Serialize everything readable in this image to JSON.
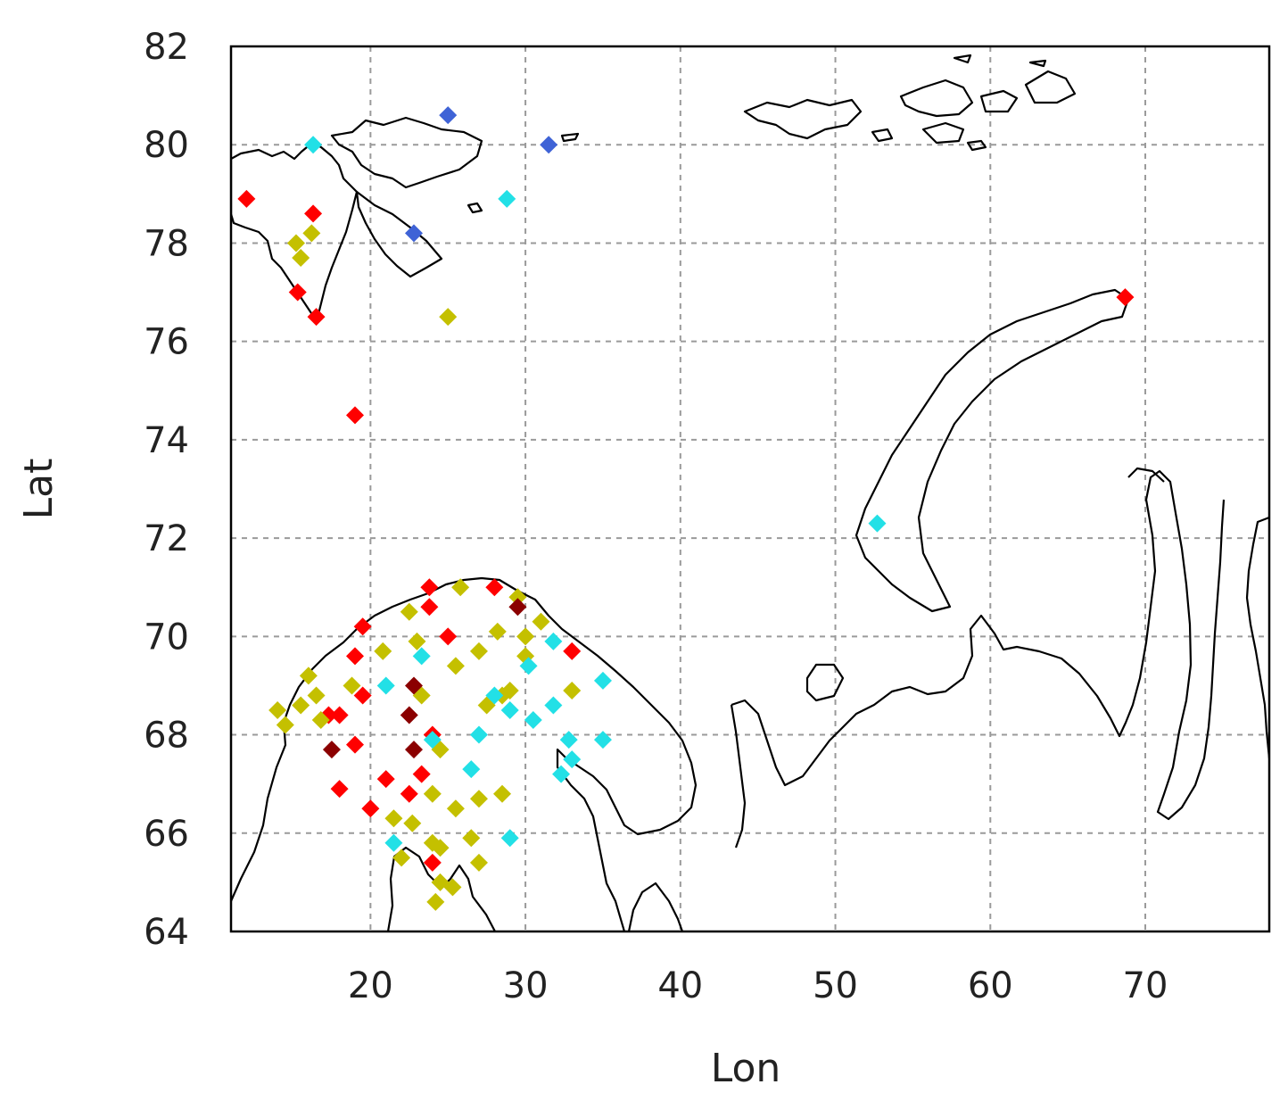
{
  "chart_data": {
    "type": "scatter",
    "xlabel": "Lon",
    "ylabel": "Lat",
    "xlim": [
      11,
      78
    ],
    "ylim": [
      64,
      82
    ],
    "xticks": [
      20,
      30,
      40,
      50,
      60,
      70
    ],
    "yticks": [
      64,
      66,
      68,
      70,
      72,
      74,
      76,
      78,
      80,
      82
    ],
    "grid": true,
    "marker": "diamond",
    "colors": {
      "red": "#ff0000",
      "yellow": "#c4c000",
      "cyan": "#22e0e6",
      "darkred": "#8b0000",
      "blue": "#3f63d6"
    },
    "series": [
      {
        "color_key": "red",
        "points": [
          [
            12.0,
            78.9
          ],
          [
            16.3,
            78.6
          ],
          [
            15.3,
            77.0
          ],
          [
            16.5,
            76.5
          ],
          [
            19.0,
            74.5
          ],
          [
            23.8,
            71.0
          ],
          [
            23.8,
            70.6
          ],
          [
            28.0,
            71.0
          ],
          [
            19.5,
            70.2
          ],
          [
            25.0,
            70.0
          ],
          [
            19.0,
            69.6
          ],
          [
            33.0,
            69.7
          ],
          [
            19.5,
            68.8
          ],
          [
            17.3,
            68.4
          ],
          [
            18.0,
            68.4
          ],
          [
            19.0,
            67.8
          ],
          [
            24.0,
            68.0
          ],
          [
            18.0,
            66.9
          ],
          [
            21.0,
            67.1
          ],
          [
            23.3,
            67.2
          ],
          [
            22.5,
            66.8
          ],
          [
            20.0,
            66.5
          ],
          [
            24.0,
            65.4
          ],
          [
            68.7,
            76.9
          ]
        ]
      },
      {
        "color_key": "yellow",
        "points": [
          [
            15.2,
            78.0
          ],
          [
            15.5,
            77.7
          ],
          [
            16.2,
            78.2
          ],
          [
            25.0,
            76.5
          ],
          [
            22.5,
            70.5
          ],
          [
            25.8,
            71.0
          ],
          [
            29.5,
            70.8
          ],
          [
            31.0,
            70.3
          ],
          [
            23.0,
            69.9
          ],
          [
            20.8,
            69.7
          ],
          [
            28.2,
            70.1
          ],
          [
            30.0,
            70.0
          ],
          [
            27.0,
            69.7
          ],
          [
            25.5,
            69.4
          ],
          [
            30.0,
            69.6
          ],
          [
            16.0,
            69.2
          ],
          [
            18.8,
            69.0
          ],
          [
            14.0,
            68.5
          ],
          [
            15.5,
            68.6
          ],
          [
            16.5,
            68.8
          ],
          [
            14.5,
            68.2
          ],
          [
            16.8,
            68.3
          ],
          [
            23.3,
            68.8
          ],
          [
            27.5,
            68.6
          ],
          [
            29.0,
            68.9
          ],
          [
            28.5,
            68.8
          ],
          [
            33.0,
            68.9
          ],
          [
            24.5,
            67.7
          ],
          [
            24.0,
            66.8
          ],
          [
            25.5,
            66.5
          ],
          [
            27.0,
            66.7
          ],
          [
            28.5,
            66.8
          ],
          [
            21.5,
            66.3
          ],
          [
            22.7,
            66.2
          ],
          [
            26.5,
            65.9
          ],
          [
            24.0,
            65.8
          ],
          [
            24.5,
            65.7
          ],
          [
            22.0,
            65.5
          ],
          [
            27.0,
            65.4
          ],
          [
            24.5,
            65.0
          ],
          [
            25.3,
            64.9
          ],
          [
            24.2,
            64.6
          ]
        ]
      },
      {
        "color_key": "cyan",
        "points": [
          [
            16.3,
            80.0
          ],
          [
            28.8,
            78.9
          ],
          [
            31.8,
            69.9
          ],
          [
            23.3,
            69.6
          ],
          [
            30.2,
            69.4
          ],
          [
            35.0,
            69.1
          ],
          [
            21.0,
            69.0
          ],
          [
            28.0,
            68.8
          ],
          [
            29.0,
            68.5
          ],
          [
            30.5,
            68.3
          ],
          [
            31.8,
            68.6
          ],
          [
            24.0,
            67.9
          ],
          [
            27.0,
            68.0
          ],
          [
            32.8,
            67.9
          ],
          [
            35.0,
            67.9
          ],
          [
            33.0,
            67.5
          ],
          [
            26.5,
            67.3
          ],
          [
            32.3,
            67.2
          ],
          [
            29.0,
            65.9
          ],
          [
            21.5,
            65.8
          ],
          [
            52.7,
            72.3
          ]
        ]
      },
      {
        "color_key": "darkred",
        "points": [
          [
            29.5,
            70.6
          ],
          [
            22.8,
            69.0
          ],
          [
            22.5,
            68.4
          ],
          [
            17.5,
            67.7
          ],
          [
            22.8,
            67.7
          ]
        ]
      },
      {
        "color_key": "blue",
        "points": [
          [
            25.0,
            80.6
          ],
          [
            31.5,
            80.0
          ],
          [
            22.8,
            78.2
          ]
        ]
      }
    ]
  }
}
